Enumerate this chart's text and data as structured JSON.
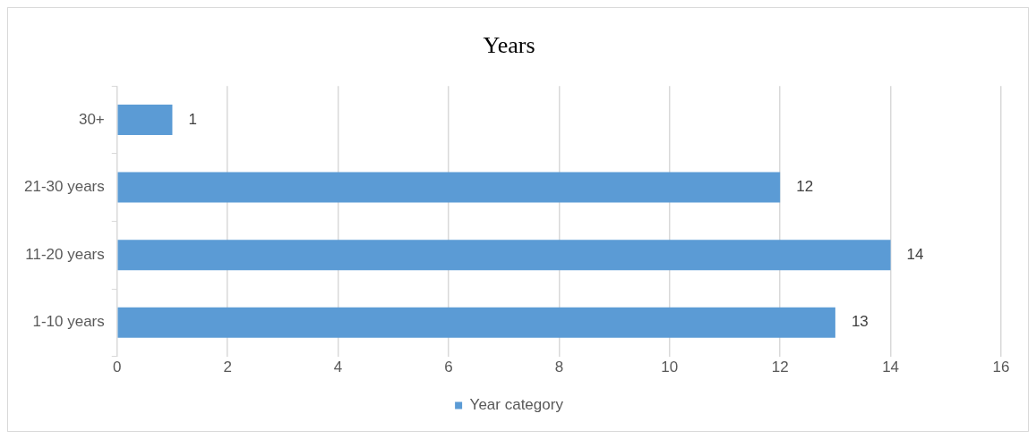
{
  "chart_data": {
    "type": "bar",
    "title": "Years",
    "orientation": "horizontal",
    "categories": [
      "30+",
      "21-30 years",
      "11-20 years",
      "1-10 years"
    ],
    "series": [
      {
        "name": "Year category",
        "color": "#5b9bd5",
        "values": [
          1,
          12,
          14,
          13
        ]
      }
    ],
    "xlim": [
      0,
      16
    ],
    "xticks": [
      0,
      2,
      4,
      6,
      8,
      10,
      12,
      14,
      16
    ],
    "grid": "x",
    "legend": "bottom",
    "data_labels": true
  }
}
